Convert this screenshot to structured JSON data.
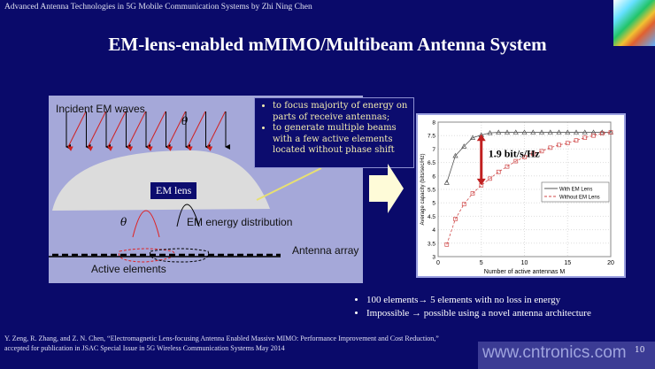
{
  "header": {
    "text": "Advanced Antenna Technologies in 5G Mobile Communication Systems by Zhi Ning Chen"
  },
  "title": "EM-lens-enabled mMIMO/Multibeam Antenna System",
  "diagram": {
    "incident_label": "Incident EM waves",
    "theta": "θ",
    "lens_label": "EM lens",
    "energy_label": "EM energy distribution",
    "array_label": "Antenna array",
    "active_label": "Active elements"
  },
  "callout": {
    "items": [
      "to focus majority of energy on parts of receive antennas;",
      "to generate multiple beams with a few active elements located without phase shift"
    ]
  },
  "chart_data": {
    "type": "line",
    "xlabel": "Number of active antennas M",
    "ylabel": "Average capacity (bits/sec/Hz)",
    "xlim": [
      0,
      20
    ],
    "ylim": [
      3,
      8
    ],
    "xticks": [
      0,
      5,
      10,
      15,
      20
    ],
    "yticks": [
      3,
      3.5,
      4,
      4.5,
      5,
      5.5,
      6,
      6.5,
      7,
      7.5,
      8
    ],
    "grid": true,
    "legend_position": "right",
    "annotation": "1.9 bit/s/Hz",
    "x": [
      1,
      2,
      3,
      4,
      5,
      6,
      7,
      8,
      9,
      10,
      11,
      12,
      13,
      14,
      15,
      16,
      17,
      18,
      19,
      20
    ],
    "series": [
      {
        "name": "With EM Lens",
        "color": "#555555",
        "marker": "triangle",
        "values": [
          5.75,
          6.75,
          7.1,
          7.42,
          7.52,
          7.6,
          7.62,
          7.62,
          7.62,
          7.62,
          7.62,
          7.62,
          7.62,
          7.62,
          7.62,
          7.62,
          7.62,
          7.62,
          7.62,
          7.62
        ]
      },
      {
        "name": "Without EM Lens",
        "color": "#d04a4a",
        "marker": "square",
        "values": [
          3.45,
          4.4,
          4.95,
          5.35,
          5.65,
          5.9,
          6.15,
          6.35,
          6.55,
          6.7,
          6.82,
          6.92,
          7.05,
          7.15,
          7.22,
          7.32,
          7.42,
          7.5,
          7.58,
          7.62
        ]
      }
    ]
  },
  "bullets": [
    "100 elements→ 5 elements with no loss in energy",
    "Impossible → possible using a novel antenna architecture"
  ],
  "reference": {
    "line1": "Y. Zeng, R. Zhang, and Z. N. Chen, “Electromagnetic Lens-focusing Antenna Enabled Massive MIMO: Performance Improvement and Cost Reduction,”",
    "line2": "accepted for  publication in JSAC Special Issue in 5G Wireless Communication Systems May 2014"
  },
  "watermark": "www.cntronics.com",
  "page_number": "10"
}
